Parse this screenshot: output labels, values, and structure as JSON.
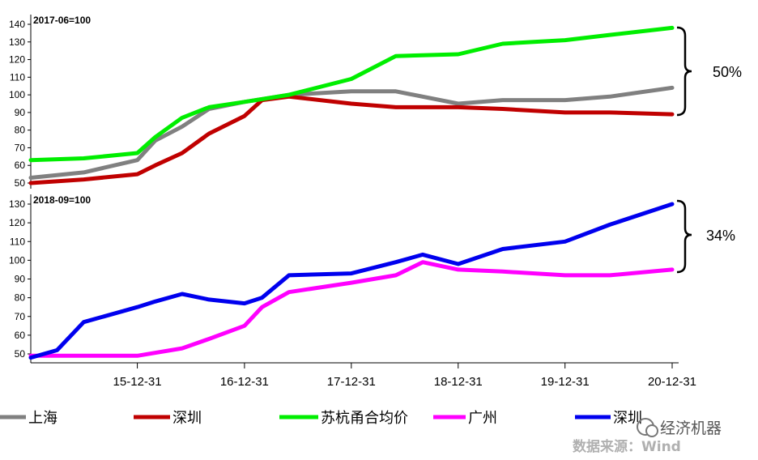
{
  "chart_data": [
    {
      "type": "line",
      "title": "2017-06=100",
      "ylim": [
        45,
        142
      ],
      "yticks": [
        50,
        60,
        70,
        80,
        90,
        100,
        110,
        120,
        130,
        140
      ],
      "x_ticks": [
        "15-12-31",
        "16-12-31",
        "17-12-31",
        "18-12-31",
        "19-12-31",
        "20-12-31"
      ],
      "annotation": "50%",
      "series": [
        {
          "name": "上海",
          "color": "#808080",
          "x": [
            "2015-01-01",
            "2015-07-01",
            "2015-12-31",
            "2016-03-01",
            "2016-06-01",
            "2016-09-01",
            "2016-12-31",
            "2017-06-01",
            "2017-12-31",
            "2018-06-01",
            "2018-12-31",
            "2019-06-01",
            "2019-12-31",
            "2020-06-01",
            "2020-12-31"
          ],
          "values": [
            53,
            56,
            63,
            74,
            82,
            92,
            96,
            100,
            102,
            102,
            95,
            97,
            97,
            99,
            104
          ]
        },
        {
          "name": "深圳",
          "color": "#c00000",
          "x": [
            "2015-01-01",
            "2015-07-01",
            "2015-12-31",
            "2016-03-01",
            "2016-06-01",
            "2016-09-01",
            "2016-12-31",
            "2017-03-01",
            "2017-06-01",
            "2017-12-31",
            "2018-06-01",
            "2018-12-31",
            "2019-06-01",
            "2019-12-31",
            "2020-06-01",
            "2020-12-31"
          ],
          "values": [
            50,
            52,
            55,
            60,
            67,
            78,
            88,
            97,
            99,
            95,
            93,
            93,
            92,
            90,
            90,
            89
          ]
        },
        {
          "name": "苏杭甬合均价",
          "color": "#00ee00",
          "x": [
            "2015-01-01",
            "2015-07-01",
            "2015-12-31",
            "2016-03-01",
            "2016-06-01",
            "2016-09-01",
            "2016-12-31",
            "2017-06-01",
            "2017-12-31",
            "2018-06-01",
            "2018-12-31",
            "2019-06-01",
            "2019-09-15",
            "2019-12-31",
            "2020-06-01",
            "2020-12-31"
          ],
          "values": [
            63,
            64,
            67,
            76,
            87,
            93,
            96,
            100,
            109,
            122,
            123,
            129,
            130,
            131,
            134,
            138
          ]
        }
      ]
    },
    {
      "type": "line",
      "title": "2018-09=100",
      "ylim": [
        46,
        132
      ],
      "yticks": [
        50,
        60,
        70,
        80,
        90,
        100,
        110,
        120,
        130
      ],
      "x_ticks": [
        "15-12-31",
        "16-12-31",
        "17-12-31",
        "18-12-31",
        "19-12-31",
        "20-12-31"
      ],
      "annotation": "34%",
      "series": [
        {
          "name": "广州",
          "color": "#ff00ff",
          "x": [
            "2015-01-01",
            "2015-07-01",
            "2015-12-31",
            "2016-06-01",
            "2016-09-01",
            "2016-12-31",
            "2017-03-01",
            "2017-06-01",
            "2017-12-31",
            "2018-06-01",
            "2018-09-01",
            "2018-12-31",
            "2019-06-01",
            "2019-12-31",
            "2020-06-01",
            "2020-12-31"
          ],
          "values": [
            49,
            49,
            49,
            53,
            58,
            65,
            75,
            83,
            88,
            92,
            99,
            95,
            94,
            92,
            92,
            95
          ]
        },
        {
          "name": "深圳",
          "color": "#0000ee",
          "x": [
            "2015-01-01",
            "2015-04-01",
            "2015-07-01",
            "2015-12-31",
            "2016-03-01",
            "2016-06-01",
            "2016-09-01",
            "2016-12-31",
            "2017-03-01",
            "2017-06-01",
            "2017-12-31",
            "2018-06-01",
            "2018-09-01",
            "2018-12-31",
            "2019-06-01",
            "2019-12-31",
            "2020-06-01",
            "2020-12-31"
          ],
          "values": [
            48,
            52,
            67,
            75,
            78,
            82,
            79,
            77,
            80,
            92,
            93,
            99,
            103,
            98,
            106,
            110,
            119,
            130
          ]
        }
      ]
    }
  ],
  "legend": [
    {
      "label": "上海",
      "color": "#808080"
    },
    {
      "label": "深圳",
      "color": "#c00000"
    },
    {
      "label": "苏杭甬合均价",
      "color": "#00ee00"
    },
    {
      "label": "广州",
      "color": "#ff00ff"
    },
    {
      "label": "深圳",
      "color": "#0000ee"
    }
  ],
  "watermark": "经济机器",
  "source": "数据来源：Wind"
}
